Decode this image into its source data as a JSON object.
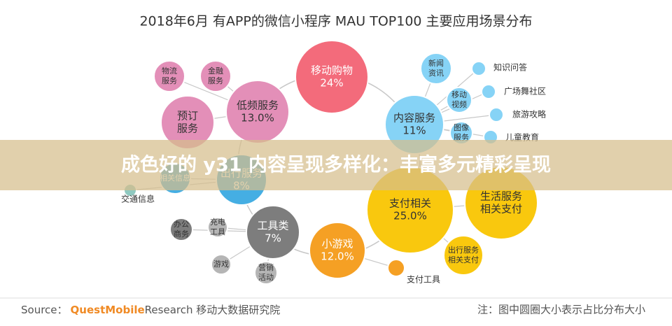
{
  "header": {
    "title": "2018年6月 有APP的微信小程序 MAU TOP100 主要应用场景分布"
  },
  "nodes": [
    {
      "label": [
        "移动购物",
        "24%"
      ]
    },
    {
      "label": [
        "低频服务",
        "13.0%"
      ]
    },
    {
      "label": [
        "物流",
        "服务"
      ]
    },
    {
      "label": [
        "金融",
        "服务"
      ]
    },
    {
      "label": [
        "预订",
        "服务"
      ]
    },
    {
      "label": [
        "内容服务",
        "11%"
      ]
    },
    {
      "label": [
        "新闻",
        "资讯"
      ]
    },
    {
      "label": [
        "移动",
        "视频"
      ]
    },
    {
      "label": [
        "图像",
        "服务"
      ]
    },
    {
      "label": [
        "知识问答"
      ]
    },
    {
      "label": [
        "广场舞社区"
      ]
    },
    {
      "label": [
        "旅游攻略"
      ]
    },
    {
      "label": [
        "儿童教育"
      ]
    },
    {
      "label": [
        "出行服务",
        "8%"
      ]
    },
    {
      "label": [
        "相关信息"
      ]
    },
    {
      "label": [
        "交通信息"
      ]
    },
    {
      "label": [
        "工具类",
        "7%"
      ]
    },
    {
      "label": [
        "办公",
        "商务"
      ]
    },
    {
      "label": [
        "充电",
        "工具"
      ]
    },
    {
      "label": [
        "游戏"
      ]
    },
    {
      "label": [
        "营销",
        "活动"
      ]
    },
    {
      "label": [
        "小游戏",
        "12.0%"
      ]
    },
    {
      "label": [
        "支付工具"
      ]
    },
    {
      "label": [
        "支付相关",
        "25.0%"
      ]
    },
    {
      "label": [
        "生活服务",
        "相关支付"
      ]
    },
    {
      "label": [
        "出行服务",
        "相关支付"
      ]
    }
  ],
  "banner": "成色好的 y31 内容呈现多样化：丰富多元精彩呈现",
  "footer": {
    "source_prefix": "Source：",
    "brand": "QuestMobile",
    "source_rest": "Research 移动大数据研究院",
    "note": "注：图中圆圈大小表示占比分布大小"
  }
}
